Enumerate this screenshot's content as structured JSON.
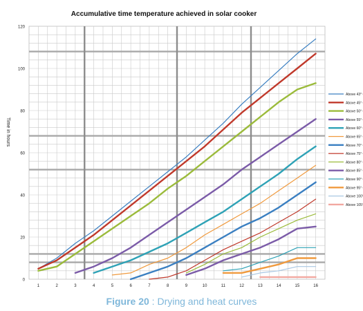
{
  "chart_data": {
    "type": "line",
    "title": "Accumulative time temperature achieved in solar cooker",
    "xlabel": "",
    "ylabel": "Time in hours",
    "x": [
      1,
      2,
      3,
      4,
      5,
      6,
      7,
      8,
      9,
      10,
      11,
      12,
      13,
      14,
      15,
      16
    ],
    "xlim": [
      0.5,
      16.5
    ],
    "ylim": [
      0,
      120
    ],
    "yticks": [
      0,
      20,
      40,
      60,
      80,
      100,
      120
    ],
    "grid": true,
    "legend_position": "right",
    "series": [
      {
        "name": "Above 43° C",
        "color": "#3a7fc1",
        "width": 1.2,
        "x": [
          1,
          2,
          3,
          4,
          5,
          6,
          7,
          8,
          9,
          10,
          11,
          12,
          13,
          14,
          15,
          16
        ],
        "values": [
          5,
          10,
          17,
          23,
          30,
          37,
          44,
          51,
          58,
          66,
          74,
          83,
          91,
          99,
          107,
          114
        ]
      },
      {
        "name": "Above 45° C",
        "color": "#c0392b",
        "width": 2.4,
        "x": [
          1,
          2,
          3,
          4,
          5,
          6,
          7,
          8,
          9,
          10,
          11,
          12,
          13,
          14,
          15,
          16
        ],
        "values": [
          5,
          9,
          15,
          21,
          28,
          35,
          42,
          49,
          56,
          63,
          71,
          79,
          86,
          93,
          100,
          107
        ]
      },
      {
        "name": "Above 50° C",
        "color": "#9bbb3b",
        "width": 2.4,
        "x": [
          1,
          2,
          3,
          4,
          5,
          6,
          7,
          8,
          9,
          10,
          11,
          12,
          13,
          14,
          15,
          16
        ],
        "values": [
          4,
          6,
          12,
          18,
          24,
          30,
          36,
          43,
          49,
          56,
          63,
          70,
          77,
          84,
          90,
          93
        ]
      },
      {
        "name": "Above 55° C",
        "color": "#7b5ba8",
        "width": 2.4,
        "x": [
          3,
          4,
          5,
          6,
          7,
          8,
          9,
          10,
          11,
          12,
          13,
          14,
          15,
          16
        ],
        "values": [
          3,
          6,
          10,
          15,
          21,
          27,
          33,
          39,
          45,
          52,
          58,
          64,
          70,
          76
        ]
      },
      {
        "name": "Above 60° C",
        "color": "#2ea2b6",
        "width": 2.4,
        "x": [
          4,
          5,
          6,
          7,
          8,
          9,
          10,
          11,
          12,
          13,
          14,
          15,
          16
        ],
        "values": [
          3,
          6,
          9,
          13,
          17,
          22,
          27,
          32,
          38,
          44,
          50,
          57,
          63
        ]
      },
      {
        "name": "Above 65° C",
        "color": "#f09a3e",
        "width": 1.2,
        "x": [
          5,
          6,
          7,
          8,
          9,
          10,
          11,
          12,
          13,
          14,
          15,
          16
        ],
        "values": [
          2,
          3,
          7,
          10,
          15,
          21,
          26,
          31,
          36,
          42,
          48,
          54
        ]
      },
      {
        "name": "Above 70° C",
        "color": "#3a7fc1",
        "width": 2.4,
        "x": [
          6,
          7,
          8,
          9,
          10,
          11,
          12,
          13,
          14,
          15,
          16
        ],
        "values": [
          0,
          3,
          6,
          10,
          15,
          20,
          25,
          29,
          34,
          40,
          46
        ]
      },
      {
        "name": "Above 75° C",
        "color": "#c0392b",
        "width": 1.2,
        "x": [
          7,
          8,
          9,
          10,
          11,
          12,
          13,
          14,
          15,
          16
        ],
        "values": [
          0,
          1,
          4,
          9,
          14,
          18,
          22,
          27,
          32,
          38
        ]
      },
      {
        "name": "Above 80° C",
        "color": "#9bbb3b",
        "width": 1.2,
        "x": [
          9,
          10,
          11,
          12,
          13,
          14,
          15,
          16
        ],
        "values": [
          3,
          7,
          12,
          15,
          20,
          24,
          28,
          31
        ]
      },
      {
        "name": "Above 85° C",
        "color": "#7b5ba8",
        "width": 2.4,
        "x": [
          9,
          10,
          11,
          12,
          13,
          14,
          15,
          16
        ],
        "values": [
          2,
          5,
          9,
          12,
          15,
          19,
          24,
          25
        ]
      },
      {
        "name": "Above 90° C",
        "color": "#2ea2b6",
        "width": 1.2,
        "x": [
          11,
          12,
          13,
          14,
          15,
          16
        ],
        "values": [
          4,
          5,
          8,
          11,
          15,
          15
        ]
      },
      {
        "name": "Above 95° C",
        "color": "#f09a3e",
        "width": 2.4,
        "x": [
          11,
          12,
          13,
          14,
          15,
          16
        ],
        "values": [
          3,
          3,
          5,
          7,
          10,
          10
        ]
      },
      {
        "name": "Above 100° C",
        "color": "#a9c7e3",
        "width": 1.2,
        "x": [
          12,
          13,
          14,
          15,
          16
        ],
        "values": [
          1,
          3,
          4,
          6,
          6
        ]
      },
      {
        "name": "Above 105° C",
        "color": "#f2a8a0",
        "width": 2.4,
        "x": [
          13,
          14,
          15,
          16
        ],
        "values": [
          1,
          1,
          1,
          1
        ]
      }
    ]
  },
  "caption": {
    "label": "Figure 20",
    "text": " : Drying and heat curves"
  }
}
